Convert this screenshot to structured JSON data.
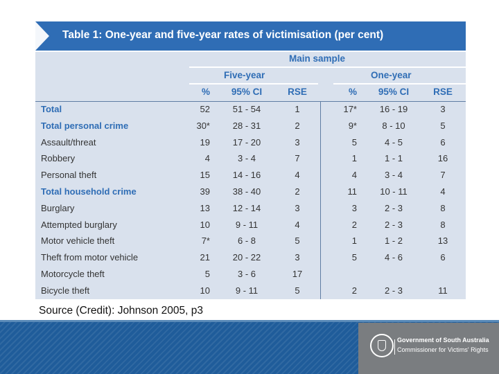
{
  "table": {
    "title": "Table 1: One-year and five-year rates of victimisation (per cent)",
    "main_sample": "Main sample",
    "group_five": "Five-year",
    "group_one": "One-year",
    "columns": [
      "%",
      "95% CI",
      "RSE",
      "%",
      "95% CI",
      "RSE"
    ],
    "rows": [
      {
        "label": "Total",
        "bold": true,
        "values": [
          "52",
          "51 - 54",
          "1",
          "17*",
          "16 - 19",
          "3"
        ]
      },
      {
        "label": "Total personal crime",
        "bold": true,
        "values": [
          "30*",
          "28 - 31",
          "2",
          "9*",
          "8 - 10",
          "5"
        ]
      },
      {
        "label": "Assault/threat",
        "bold": false,
        "values": [
          "19",
          "17 - 20",
          "3",
          "5",
          "4 - 5",
          "6"
        ]
      },
      {
        "label": "Robbery",
        "bold": false,
        "values": [
          "4",
          "3 - 4",
          "7",
          "1",
          "1 - 1",
          "16"
        ]
      },
      {
        "label": "Personal theft",
        "bold": false,
        "values": [
          "15",
          "14 - 16",
          "4",
          "4",
          "3 - 4",
          "7"
        ]
      },
      {
        "label": "Total household crime",
        "bold": true,
        "values": [
          "39",
          "38 - 40",
          "2",
          "11",
          "10 - 11",
          "4"
        ]
      },
      {
        "label": "Burglary",
        "bold": false,
        "values": [
          "13",
          "12 - 14",
          "3",
          "3",
          "2 - 3",
          "8"
        ]
      },
      {
        "label": "Attempted burglary",
        "bold": false,
        "values": [
          "10",
          "9 - 11",
          "4",
          "2",
          "2 - 3",
          "8"
        ]
      },
      {
        "label": "Motor vehicle theft",
        "bold": false,
        "values": [
          "7*",
          "6 - 8",
          "5",
          "1",
          "1 - 2",
          "13"
        ]
      },
      {
        "label": "Theft from motor vehicle",
        "bold": false,
        "values": [
          "21",
          "20 - 22",
          "3",
          "5",
          "4 - 6",
          "6"
        ]
      },
      {
        "label": "Motorcycle theft",
        "bold": false,
        "values": [
          "5",
          "3 - 6",
          "17",
          "",
          "",
          ""
        ]
      },
      {
        "label": "Bicycle theft",
        "bold": false,
        "values": [
          "10",
          "9 - 11",
          "5",
          "2",
          "2 - 3",
          "11"
        ]
      }
    ]
  },
  "caption": "Source (Credit): Johnson 2005, p3",
  "footer": {
    "org_line1": "Government of South Australia",
    "org_line2": "Commissioner for Victims' Rights"
  },
  "colors": {
    "accent": "#2f6db5",
    "table_bg": "#d9e1ed",
    "footer_bg": "#1f5c9a",
    "logo_box": "#7a7d80"
  }
}
